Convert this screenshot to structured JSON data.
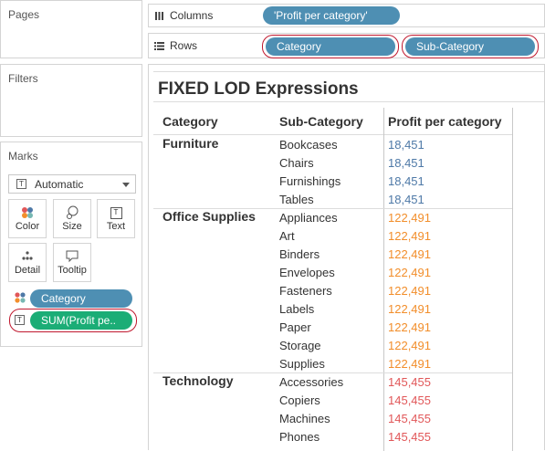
{
  "cards": {
    "pages": "Pages",
    "filters": "Filters",
    "marks": "Marks"
  },
  "shelves": {
    "columns": {
      "label": "Columns",
      "pills": [
        "'Profit per category'"
      ]
    },
    "rows": {
      "label": "Rows",
      "pills": [
        "Category",
        "Sub-Category"
      ]
    }
  },
  "marks": {
    "mark_type": "Automatic",
    "tiles": [
      "Color",
      "Size",
      "Text",
      "Detail",
      "Tooltip"
    ],
    "pills": [
      "Category",
      "SUM(Profit pe.."
    ]
  },
  "viz": {
    "title": "FIXED LOD Expressions",
    "headers": [
      "Category",
      "Sub-Category",
      "Profit per category"
    ],
    "colors": {
      "Furniture": "#4e79a7",
      "Office Supplies": "#f28e2b",
      "Technology": "#e15759"
    },
    "groups": [
      {
        "category": "Furniture",
        "value": "18,451",
        "subs": [
          "Bookcases",
          "Chairs",
          "Furnishings",
          "Tables"
        ]
      },
      {
        "category": "Office Supplies",
        "value": "122,491",
        "subs": [
          "Appliances",
          "Art",
          "Binders",
          "Envelopes",
          "Fasteners",
          "Labels",
          "Paper",
          "Storage",
          "Supplies"
        ]
      },
      {
        "category": "Technology",
        "value": "145,455",
        "subs": [
          "Accessories",
          "Copiers",
          "Machines",
          "Phones"
        ]
      }
    ]
  }
}
